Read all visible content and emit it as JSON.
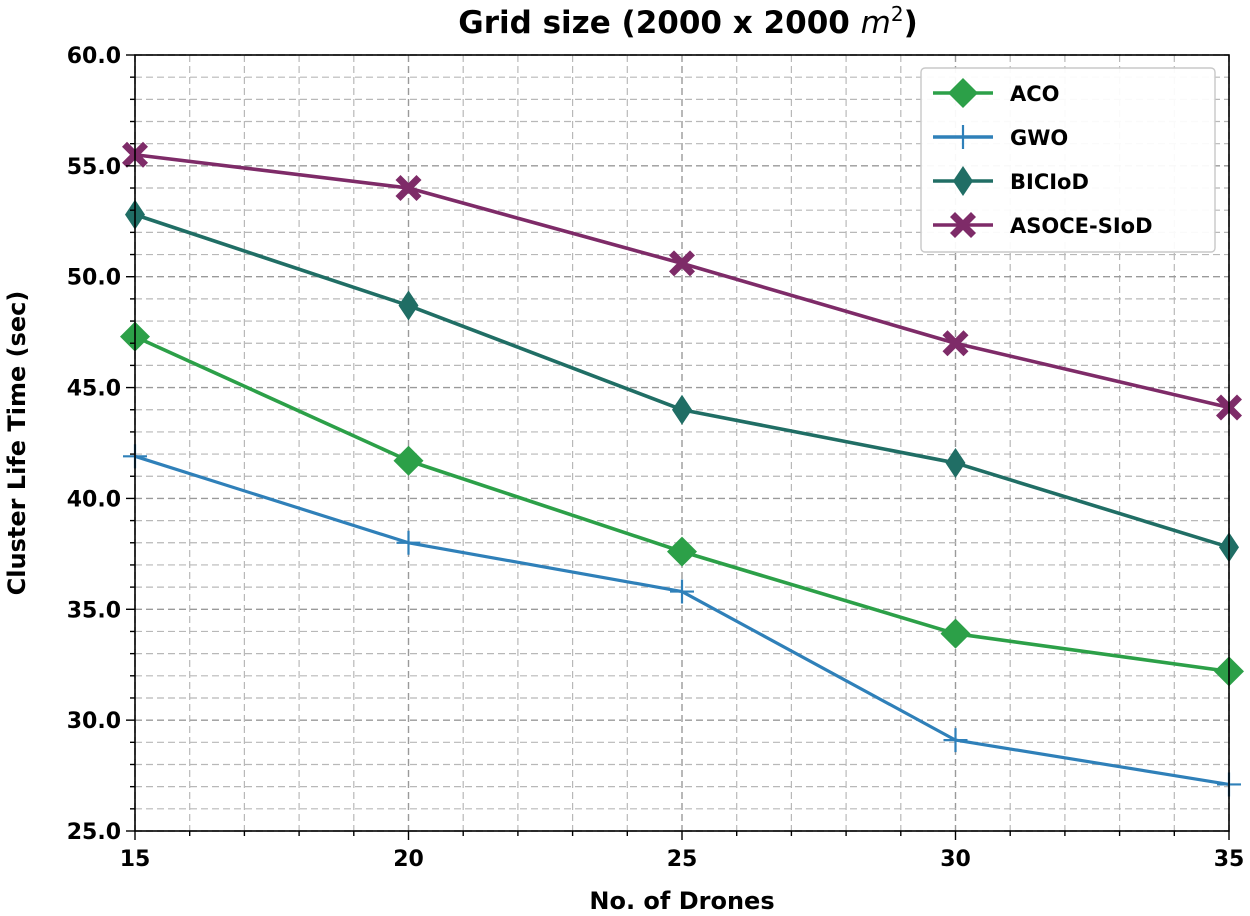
{
  "chart_data": {
    "type": "line",
    "title_main": "Grid size (2000 x 2000 ",
    "title_unit": "m",
    "title_sup": "2",
    "title_close": ")",
    "xlabel": "No. of Drones",
    "ylabel": "Cluster Life Time (sec)",
    "x": [
      15,
      20,
      25,
      30,
      35
    ],
    "xlim": [
      15,
      35
    ],
    "ylim": [
      25.0,
      60.0
    ],
    "x_ticks": [
      15,
      20,
      25,
      30,
      35
    ],
    "y_ticks": [
      "25.0",
      "30.0",
      "35.0",
      "40.0",
      "45.0",
      "50.0",
      "55.0",
      "60.0"
    ],
    "grid": true,
    "legend_position": "top-right",
    "series": [
      {
        "name": "ACO",
        "color": "#2ca048",
        "marker": "diamond",
        "values": [
          47.3,
          41.7,
          37.6,
          33.9,
          32.2
        ]
      },
      {
        "name": "GWO",
        "color": "#2f80b9",
        "marker": "plus",
        "values": [
          41.9,
          38.0,
          35.8,
          29.1,
          27.1
        ]
      },
      {
        "name": "BICIoD",
        "color": "#206e65",
        "marker": "thin-diamond",
        "values": [
          52.8,
          48.7,
          44.0,
          41.6,
          37.8
        ]
      },
      {
        "name": "ASOCE-SIoD",
        "color": "#7e2b68",
        "marker": "x-filled",
        "values": [
          55.5,
          54.0,
          50.6,
          47.0,
          44.1
        ]
      }
    ]
  }
}
